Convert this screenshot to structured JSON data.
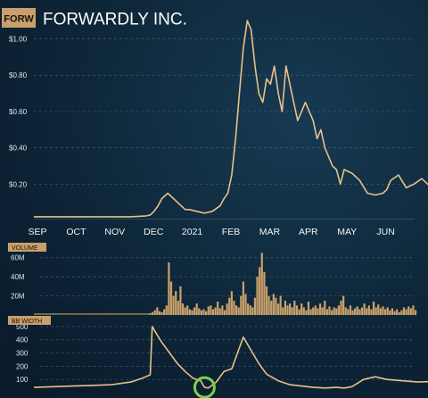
{
  "header": {
    "ticker": "FORW",
    "company": "FORWARDLY INC."
  },
  "colors": {
    "line": "#e8c08a",
    "bar": "#c9a06b",
    "grid": "#3e5a70",
    "highlight": "#7bd14a"
  },
  "chart_data": [
    {
      "type": "line",
      "title": "FORWARDLY INC.",
      "ylim": [
        0,
        1.15
      ],
      "yticks": [
        {
          "value": 0.2,
          "label": "$0.20"
        },
        {
          "value": 0.4,
          "label": "$0.40"
        },
        {
          "value": 0.6,
          "label": "$0.60"
        },
        {
          "value": 0.8,
          "label": "$0.80"
        },
        {
          "value": 1.0,
          "label": "$1.00"
        }
      ],
      "xticks": [
        {
          "x": 0,
          "label": "SEP"
        },
        {
          "x": 1,
          "label": "OCT"
        },
        {
          "x": 2,
          "label": "NOV"
        },
        {
          "x": 3,
          "label": "DEC"
        },
        {
          "x": 4,
          "label": "2021"
        },
        {
          "x": 5,
          "label": "FEB"
        },
        {
          "x": 6,
          "label": "MAR"
        },
        {
          "x": 7,
          "label": "APR"
        },
        {
          "x": 8,
          "label": "MAY"
        },
        {
          "x": 9,
          "label": "JUN"
        }
      ],
      "grid": true,
      "x": [
        0,
        0.5,
        1,
        1.5,
        2,
        2.5,
        2.9,
        3.0,
        3.1,
        3.2,
        3.3,
        3.45,
        3.6,
        3.8,
        3.9,
        4.0,
        4.2,
        4.4,
        4.6,
        4.8,
        4.9,
        5.0,
        5.1,
        5.2,
        5.3,
        5.4,
        5.5,
        5.6,
        5.7,
        5.8,
        5.9,
        6.0,
        6.1,
        6.2,
        6.3,
        6.4,
        6.5,
        6.6,
        6.7,
        6.8,
        6.9,
        7.0,
        7.1,
        7.2,
        7.3,
        7.4,
        7.5,
        7.6,
        7.7,
        7.8,
        7.9,
        8.0,
        8.2,
        8.4,
        8.6,
        8.8,
        9.0,
        9.1,
        9.2,
        9.4,
        9.6,
        9.8,
        10.0,
        10.2,
        10.5,
        10.7
      ],
      "y": [
        0.02,
        0.02,
        0.02,
        0.02,
        0.02,
        0.02,
        0.025,
        0.03,
        0.05,
        0.08,
        0.12,
        0.15,
        0.12,
        0.08,
        0.06,
        0.06,
        0.05,
        0.04,
        0.05,
        0.08,
        0.12,
        0.15,
        0.25,
        0.45,
        0.7,
        0.95,
        1.1,
        1.05,
        0.85,
        0.7,
        0.65,
        0.78,
        0.75,
        0.85,
        0.7,
        0.6,
        0.85,
        0.75,
        0.65,
        0.55,
        0.6,
        0.65,
        0.6,
        0.55,
        0.45,
        0.5,
        0.4,
        0.35,
        0.3,
        0.28,
        0.2,
        0.28,
        0.26,
        0.22,
        0.15,
        0.14,
        0.15,
        0.17,
        0.22,
        0.25,
        0.18,
        0.2,
        0.23,
        0.19,
        0.2,
        0.17
      ]
    },
    {
      "type": "bar",
      "title": "VOLUME",
      "ylim": [
        0,
        70
      ],
      "yticks": [
        {
          "value": 20,
          "label": "20M"
        },
        {
          "value": 40,
          "label": "40M"
        },
        {
          "value": 60,
          "label": "60M"
        }
      ],
      "grid": true,
      "x_start": 3.0,
      "x_step": 0.06,
      "values": [
        2,
        3,
        5,
        8,
        4,
        3,
        6,
        10,
        55,
        35,
        20,
        25,
        15,
        30,
        12,
        8,
        10,
        6,
        5,
        8,
        12,
        7,
        5,
        6,
        4,
        9,
        10,
        6,
        8,
        14,
        7,
        10,
        5,
        12,
        18,
        25,
        15,
        10,
        8,
        20,
        35,
        22,
        12,
        10,
        8,
        18,
        40,
        50,
        65,
        45,
        30,
        20,
        15,
        22,
        18,
        12,
        20,
        8,
        15,
        10,
        12,
        8,
        15,
        10,
        6,
        12,
        8,
        5,
        14,
        6,
        8,
        10,
        7,
        12,
        8,
        15,
        6,
        9,
        5,
        8,
        7,
        10,
        15,
        20,
        8,
        6,
        10,
        5,
        7,
        9,
        6,
        8,
        12,
        7,
        10,
        6,
        14,
        8,
        11,
        7,
        9,
        6,
        8,
        5,
        7,
        4,
        6,
        3,
        5,
        8,
        6,
        9,
        7,
        10,
        5
      ],
      "baseline_start": 0,
      "baseline_end": 3.0,
      "baseline_value": 1
    },
    {
      "type": "line",
      "title": "BB WIDTH",
      "ylim": [
        0,
        540
      ],
      "yticks": [
        {
          "value": 100,
          "label": "100"
        },
        {
          "value": 200,
          "label": "200"
        },
        {
          "value": 300,
          "label": "300"
        },
        {
          "value": 400,
          "label": "400"
        },
        {
          "value": 500,
          "label": "500"
        }
      ],
      "grid": true,
      "x": [
        0,
        0.5,
        1,
        1.5,
        2,
        2.5,
        2.8,
        3.0,
        3.05,
        3.15,
        3.3,
        3.5,
        3.7,
        3.9,
        4.1,
        4.3,
        4.4,
        4.5,
        4.7,
        4.9,
        5.1,
        5.2,
        5.4,
        5.6,
        5.8,
        6.0,
        6.3,
        6.6,
        6.9,
        7.2,
        7.5,
        7.8,
        8.0,
        8.2,
        8.5,
        8.8,
        9.1,
        9.5,
        9.9,
        10.3,
        10.5,
        10.7
      ],
      "y": [
        40,
        45,
        50,
        55,
        60,
        80,
        110,
        135,
        500,
        450,
        380,
        300,
        220,
        160,
        110,
        90,
        40,
        35,
        80,
        160,
        180,
        260,
        420,
        320,
        220,
        140,
        90,
        60,
        50,
        40,
        35,
        40,
        35,
        45,
        100,
        120,
        100,
        90,
        80,
        85,
        70,
        45
      ],
      "highlight": {
        "x": 4.4,
        "y": 40
      }
    }
  ]
}
